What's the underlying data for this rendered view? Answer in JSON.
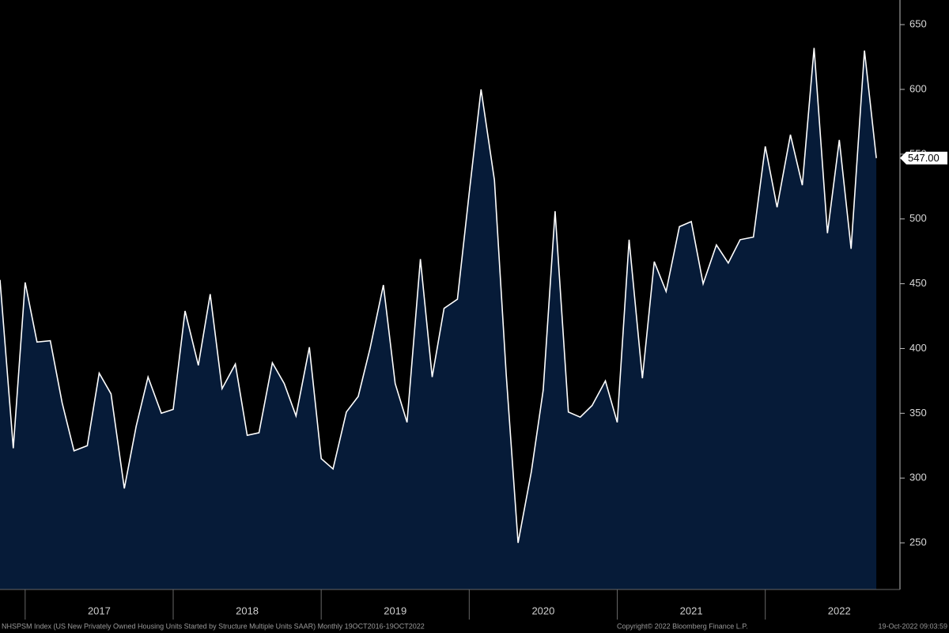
{
  "chart_data": {
    "type": "area",
    "x": [
      2016.83,
      2016.92,
      2017,
      2017.08,
      2017.17,
      2017.25,
      2017.33,
      2017.42,
      2017.5,
      2017.58,
      2017.67,
      2017.75,
      2017.83,
      2017.92,
      2018,
      2018.08,
      2018.17,
      2018.25,
      2018.33,
      2018.42,
      2018.5,
      2018.58,
      2018.67,
      2018.75,
      2018.83,
      2018.92,
      2019,
      2019.08,
      2019.17,
      2019.25,
      2019.33,
      2019.42,
      2019.5,
      2019.58,
      2019.67,
      2019.75,
      2019.83,
      2019.92,
      2020,
      2020.08,
      2020.17,
      2020.25,
      2020.33,
      2020.42,
      2020.5,
      2020.58,
      2020.67,
      2020.75,
      2020.83,
      2020.92,
      2021,
      2021.08,
      2021.17,
      2021.25,
      2021.33,
      2021.42,
      2021.5,
      2021.58,
      2021.67,
      2021.75,
      2021.83,
      2021.92,
      2022,
      2022.08,
      2022.17,
      2022.25,
      2022.33,
      2022.42,
      2022.5,
      2022.58,
      2022.67,
      2022.75
    ],
    "values": [
      453,
      323,
      451,
      405,
      406,
      358,
      321,
      325,
      381,
      365,
      292,
      340,
      378,
      350,
      353,
      429,
      387,
      442,
      369,
      388,
      333,
      335,
      389,
      373,
      348,
      401,
      315,
      307,
      351,
      363,
      400,
      449,
      373,
      343,
      469,
      378,
      431,
      438,
      520,
      600,
      530,
      380,
      250,
      305,
      368,
      506,
      351,
      347,
      356,
      375,
      343,
      484,
      377,
      467,
      444,
      494,
      498,
      450,
      480,
      466,
      484,
      486,
      556,
      509,
      565,
      526,
      632,
      489,
      561,
      477,
      630,
      547
    ],
    "color": "#ffffff",
    "fill": "#061b38",
    "last_value_label": "547.00",
    "xlim": [
      2016.83,
      2022.91
    ],
    "xticks": [
      {
        "value": 2017.5,
        "label": "2017"
      },
      {
        "value": 2018.5,
        "label": "2018"
      },
      {
        "value": 2019.5,
        "label": "2019"
      },
      {
        "value": 2020.5,
        "label": "2020"
      },
      {
        "value": 2021.5,
        "label": "2021"
      },
      {
        "value": 2022.5,
        "label": "2022"
      }
    ],
    "x_boundaries": [
      2017,
      2018,
      2019,
      2020,
      2021,
      2022
    ],
    "ylim": [
      214,
      669
    ],
    "yticks": [
      250,
      300,
      350,
      400,
      450,
      500,
      550,
      600,
      650
    ],
    "footer_left": "NHSPSM Index (US New Privately Owned Housing Units Started by Structure Multiple Units SAAR)  Monthly 19OCT2016-19OCT2022",
    "footer_center": "Copyright© 2022 Bloomberg Finance L.P.",
    "footer_right": "19-Oct-2022 09:03:59"
  }
}
